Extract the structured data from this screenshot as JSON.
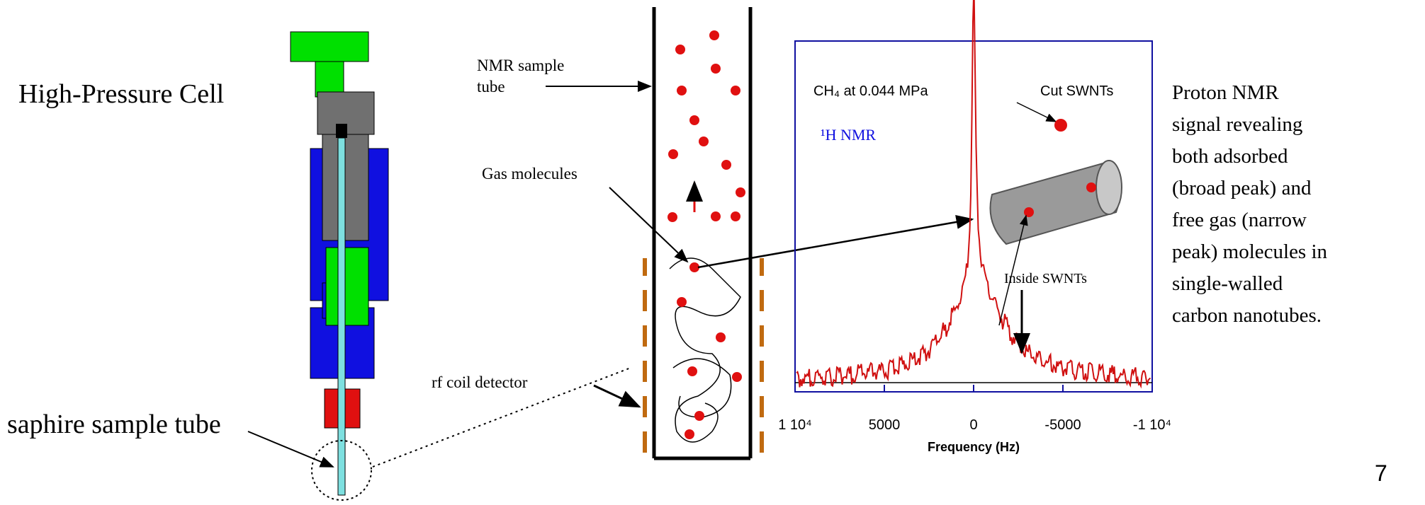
{
  "left": {
    "title": "High-Pressure Cell",
    "tube_label": "saphire sample tube"
  },
  "diagram": {
    "tube_label_line1": "NMR sample",
    "tube_label_line2": "tube",
    "gas": "Gas molecules",
    "coil": "rf coil detector"
  },
  "spectrum": {
    "annotation": "CH₄ at 0.044 MPa",
    "nucleus": "¹H NMR",
    "cut": "Cut SWNTs",
    "inside": "Inside SWNTs",
    "xlabel": "Frequency (Hz)",
    "xlim": [
      10000,
      -10000
    ],
    "xticks": [
      {
        "value": 10000,
        "label": "1 10⁴"
      },
      5000,
      0,
      -5000,
      {
        "value": -10000,
        "label": "-1 10⁴"
      }
    ]
  },
  "caption": [
    "Proton NMR",
    "signal revealing",
    "both adsorbed",
    "(broad peak) and",
    "free gas (narrow",
    "peak) molecules in",
    "single-walled",
    "carbon nanotubes."
  ],
  "page_number": "7"
}
